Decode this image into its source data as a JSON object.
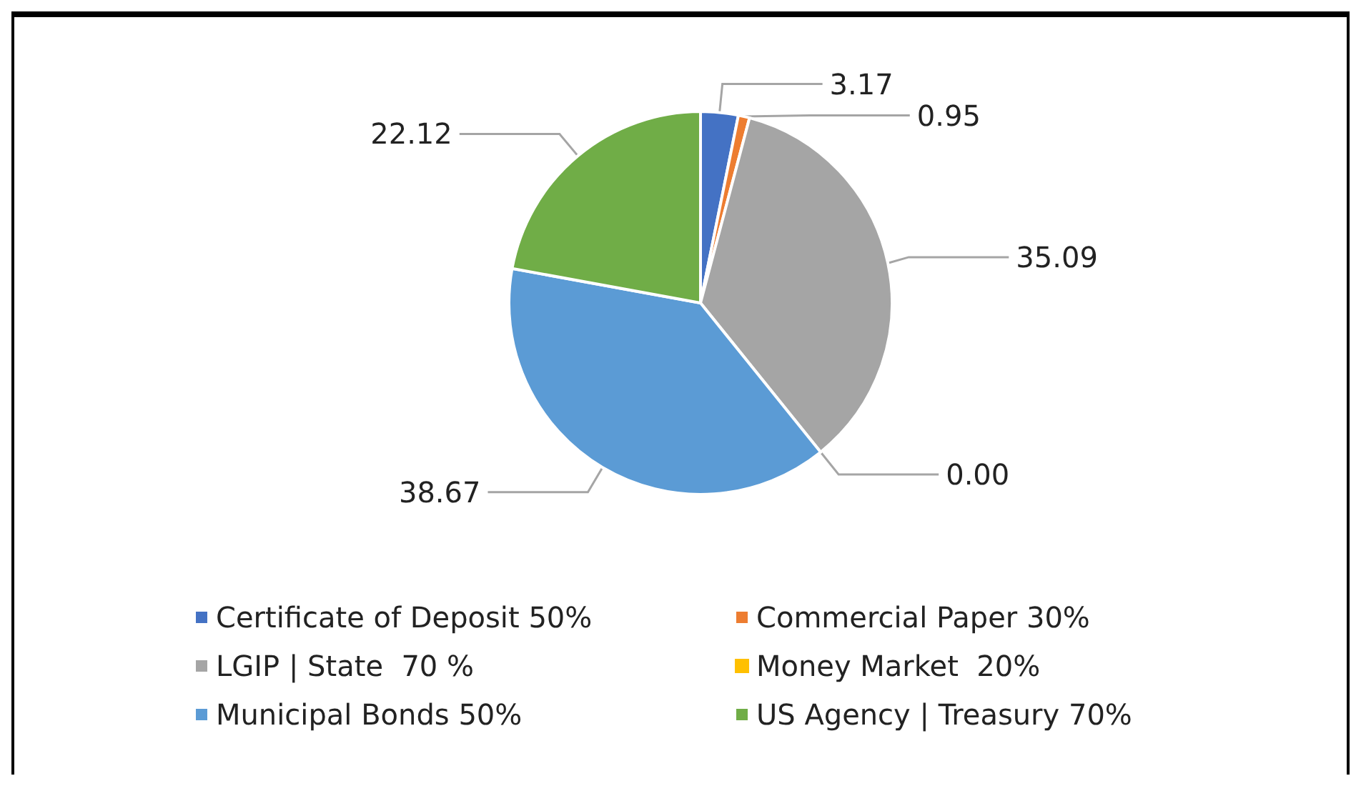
{
  "chart_data": {
    "type": "pie",
    "categories": [
      "Certificate of Deposit 50%",
      "Commercial Paper 30%",
      "LGIP | State  70 %",
      "Money Market  20%",
      "Municipal Bonds 50%",
      "US Agency | Treasury 70%"
    ],
    "values": [
      3.17,
      0.95,
      35.09,
      0,
      38.67,
      22.12
    ],
    "colors": [
      "#4472c4",
      "#ed7d31",
      "#a5a5a5",
      "#ffc000",
      "#5b9bd5",
      "#70ad47"
    ],
    "value_labels": [
      "3.17",
      "0.95",
      "35.09",
      "0.00",
      "38.67",
      "22.12"
    ],
    "legend": "bottom"
  }
}
